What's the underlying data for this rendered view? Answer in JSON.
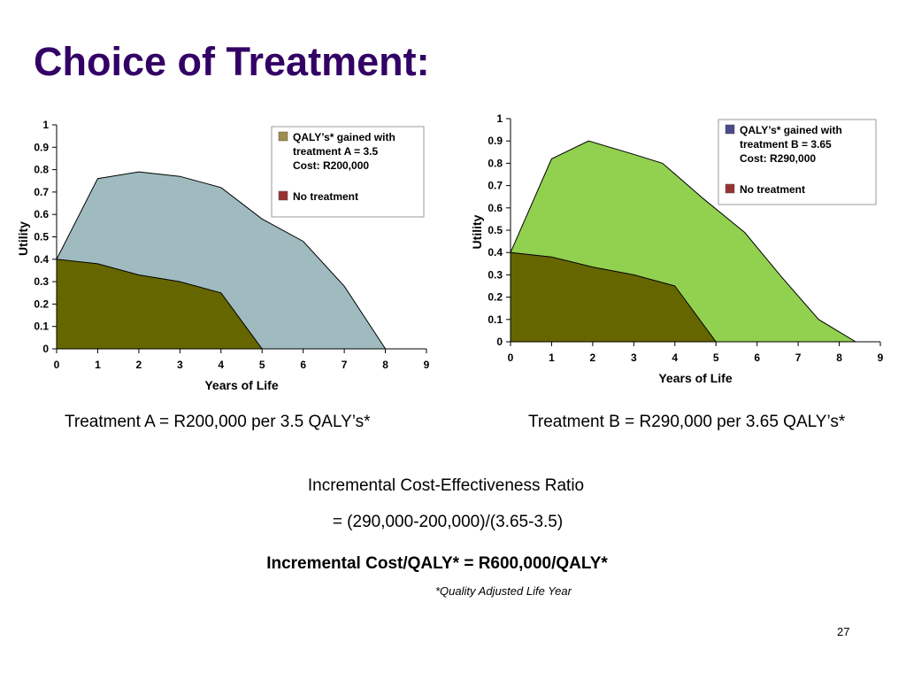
{
  "slide": {
    "title": "Choice of Treatment:",
    "caption_a": "Treatment A = R200,000 per 3.5 QALY’s*",
    "caption_b": "Treatment B = R290,000 per 3.65 QALY’s*",
    "icer_label": "Incremental Cost-Effectiveness Ratio",
    "icer_formula": "= (290,000-200,000)/(3.65-3.5)",
    "icer_result": "Incremental Cost/QALY* = R600,000/QALY*",
    "footnote": "*Quality Adjusted Life Year",
    "page_number": "27"
  },
  "chart_data": [
    {
      "type": "area",
      "xlabel": "Years of Life",
      "ylabel": "Utility",
      "xlim": [
        0,
        9
      ],
      "ylim": [
        0,
        1
      ],
      "x_ticks": [
        "0",
        "1",
        "2",
        "3",
        "4",
        "5",
        "6",
        "7",
        "8",
        "9"
      ],
      "y_ticks": [
        "0",
        "0.1",
        "0.2",
        "0.3",
        "0.4",
        "0.5",
        "0.6",
        "0.7",
        "0.8",
        "0.9",
        "1"
      ],
      "grid": false,
      "legend_position": "top-right",
      "legend": [
        {
          "lines": [
            "QALY’s* gained with",
            "treatment A = 3.5",
            "Cost: R200,000"
          ],
          "color": "#a08c4c"
        },
        {
          "lines": [
            "No treatment"
          ],
          "color": "#993333"
        }
      ],
      "series": [
        {
          "color": "#9fbbbf",
          "points": [
            [
              0,
              0.4
            ],
            [
              1,
              0.76
            ],
            [
              2,
              0.79
            ],
            [
              3,
              0.77
            ],
            [
              4,
              0.72
            ],
            [
              5,
              0.58
            ],
            [
              6,
              0.48
            ],
            [
              7,
              0.28
            ],
            [
              8,
              0
            ]
          ]
        },
        {
          "color": "#666600",
          "points": [
            [
              0,
              0.4
            ],
            [
              1,
              0.38
            ],
            [
              2,
              0.33
            ],
            [
              3,
              0.3
            ],
            [
              4,
              0.25
            ],
            [
              5,
              0
            ]
          ]
        }
      ]
    },
    {
      "type": "area",
      "xlabel": "Years of Life",
      "ylabel": "Utility",
      "xlim": [
        0,
        9
      ],
      "ylim": [
        0,
        1
      ],
      "x_ticks": [
        "0",
        "1",
        "2",
        "3",
        "4",
        "5",
        "6",
        "7",
        "8",
        "9"
      ],
      "y_ticks": [
        "0",
        "0.1",
        "0.2",
        "0.3",
        "0.4",
        "0.5",
        "0.6",
        "0.7",
        "0.8",
        "0.9",
        "1"
      ],
      "grid": false,
      "legend_position": "top-right",
      "legend": [
        {
          "lines": [
            "QALY’s* gained with",
            "treatment B = 3.65",
            "Cost: R290,000"
          ],
          "color": "#4a4a8c"
        },
        {
          "lines": [
            "No treatment"
          ],
          "color": "#993333"
        }
      ],
      "series": [
        {
          "color": "#92d050",
          "points": [
            [
              0,
              0.4
            ],
            [
              1,
              0.82
            ],
            [
              1.9,
              0.9
            ],
            [
              3,
              0.84
            ],
            [
              3.7,
              0.8
            ],
            [
              4.7,
              0.64
            ],
            [
              5.7,
              0.49
            ],
            [
              6.6,
              0.29
            ],
            [
              7.5,
              0.1
            ],
            [
              8.4,
              0
            ]
          ]
        },
        {
          "color": "#666600",
          "points": [
            [
              0,
              0.4
            ],
            [
              1,
              0.38
            ],
            [
              2,
              0.335
            ],
            [
              3,
              0.3
            ],
            [
              4,
              0.25
            ],
            [
              5,
              0
            ]
          ]
        }
      ]
    }
  ]
}
